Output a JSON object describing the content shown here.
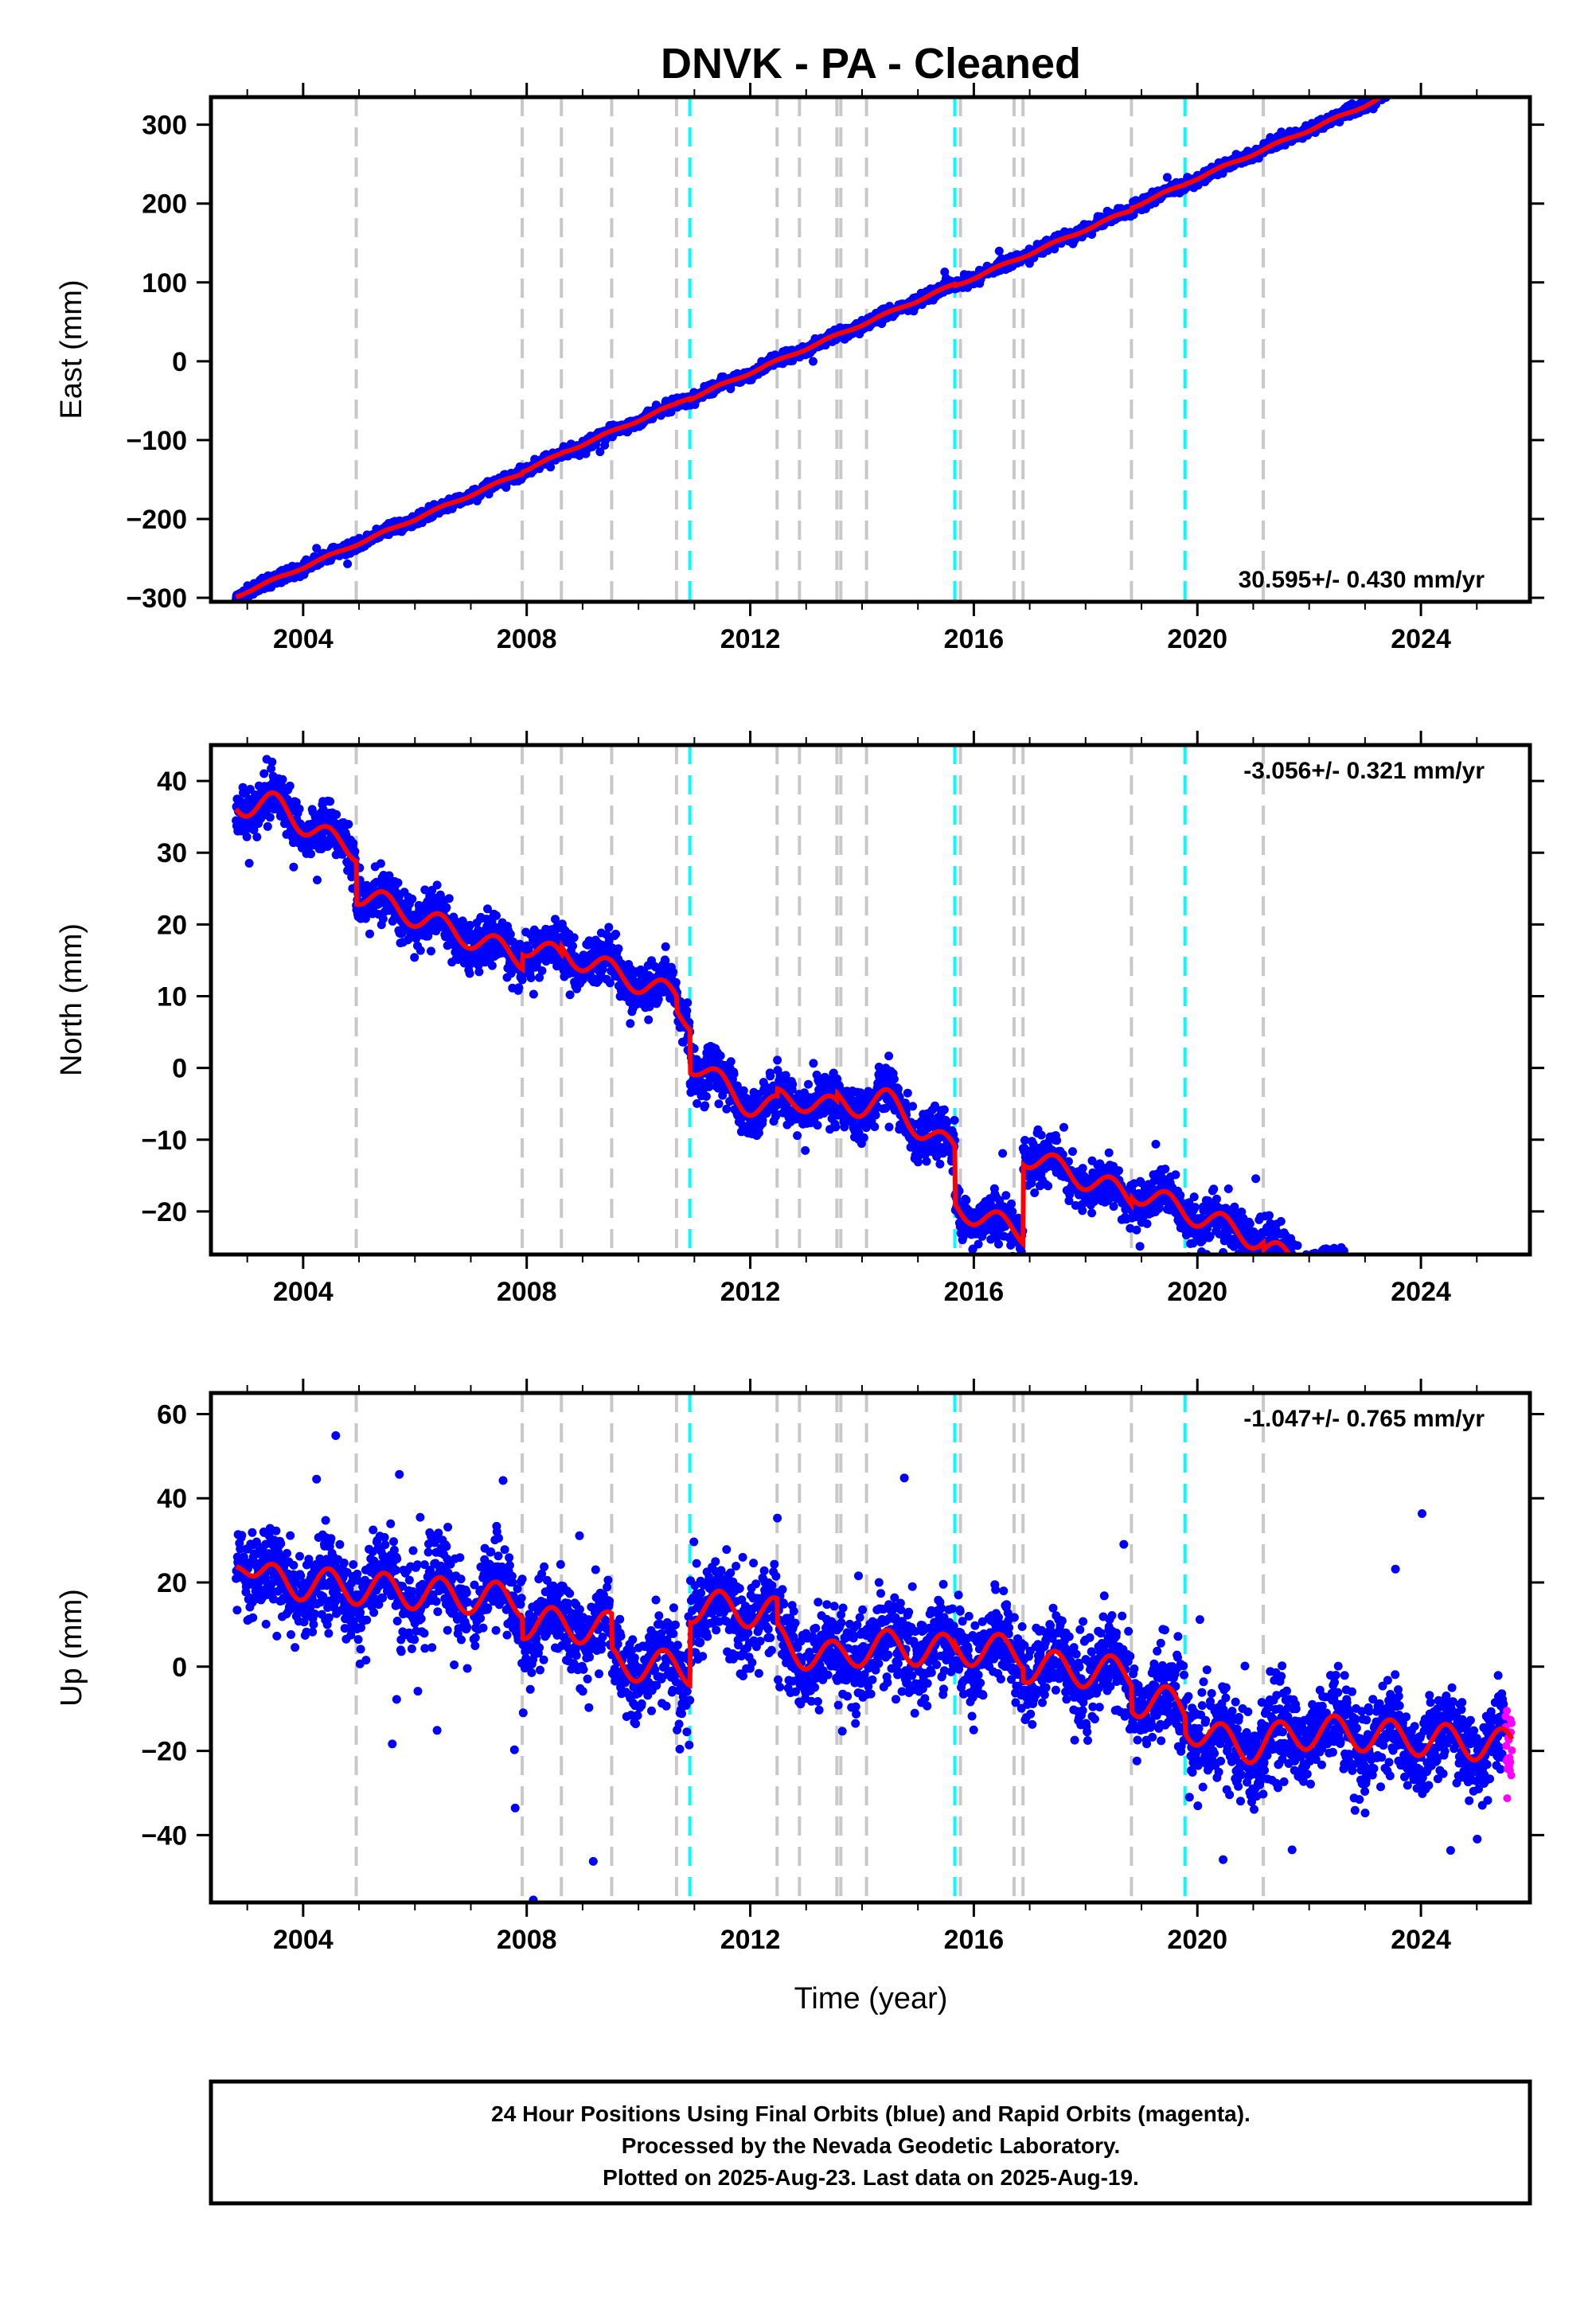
{
  "chart_data": {
    "type": "scatter",
    "title": "DNVK  - PA - Cleaned",
    "x_label": "Time (year)",
    "x_range": [
      2002.35,
      2025.95
    ],
    "x_ticks": [
      2004,
      2008,
      2012,
      2016,
      2020,
      2024
    ],
    "x_tick_labels": [
      "2004",
      "2008",
      "2012",
      "2016",
      "2020",
      "2024"
    ],
    "colors": {
      "final_orbits": "#0000ff",
      "rapid_orbits": "#ff00ff",
      "model": "#ff0000",
      "equipment_change": "#c8c8c8",
      "earthquake": "#00ffff"
    },
    "event_lines": {
      "equipment_changes": [
        2004.95,
        2007.92,
        2008.62,
        2009.52,
        2010.68,
        2012.48,
        2012.88,
        2013.55,
        2013.62,
        2014.08,
        2015.76,
        2016.72,
        2016.88,
        2018.82,
        2021.18
      ],
      "earthquakes": [
        2010.92,
        2015.66,
        2019.78
      ]
    },
    "last_data": 2025.63,
    "rapid_start": 2025.48,
    "panels": [
      {
        "component": "east",
        "y_label": "East (mm)",
        "y_range": [
          -305,
          335
        ],
        "y_ticks": [
          -300,
          -200,
          -100,
          0,
          100,
          200,
          300
        ],
        "y_tick_labels": [
          "−300",
          "−200",
          "−100",
          "0",
          "100",
          "200",
          "300"
        ],
        "rate_text": "30.595+/- 0.430 mm/yr",
        "rate_position": "bottom-right",
        "rate_mm_per_yr": 30.595,
        "rate_sigma": 0.43,
        "model_anchor": [
          2002.8,
          -298
        ],
        "seasonal_amplitude": 1.5,
        "noise_sd": 3.5,
        "outlier_fraction": 0.008,
        "outlier_scale": 10,
        "offsets": [
          {
            "year": 2007.92,
            "size": 2
          },
          {
            "year": 2008.62,
            "size": 1
          },
          {
            "year": 2010.68,
            "size": 1
          },
          {
            "year": 2010.92,
            "size": -2
          },
          {
            "year": 2015.66,
            "size": -2
          },
          {
            "year": 2018.82,
            "size": 3
          },
          {
            "year": 2019.78,
            "size": 1
          }
        ],
        "wiggles": [
          {
            "year": 2024.0,
            "size": 8,
            "width": 0.6
          },
          {
            "year": 2024.8,
            "size": -6,
            "width": 0.4
          }
        ]
      },
      {
        "component": "north",
        "y_label": "North (mm)",
        "y_range": [
          -26,
          45
        ],
        "y_ticks": [
          -20,
          -10,
          0,
          10,
          20,
          30,
          40
        ],
        "y_tick_labels": [
          "−20",
          "−10",
          "0",
          "10",
          "20",
          "30",
          "40"
        ],
        "rate_text": "-3.056+/- 0.321 mm/yr",
        "rate_position": "top-right",
        "rate_mm_per_yr": -3.056,
        "rate_sigma": 0.321,
        "model_anchor": [
          2002.8,
          37
        ],
        "seasonal_amplitude": 1.6,
        "noise_sd": 1.7,
        "outlier_fraction": 0.012,
        "outlier_scale": 7,
        "offsets": [
          {
            "year": 2004.95,
            "size": -6
          },
          {
            "year": 2007.92,
            "size": 2
          },
          {
            "year": 2008.62,
            "size": 1
          },
          {
            "year": 2010.68,
            "size": -2
          },
          {
            "year": 2010.92,
            "size": -6
          },
          {
            "year": 2012.48,
            "size": 1
          },
          {
            "year": 2013.55,
            "size": 1
          },
          {
            "year": 2015.66,
            "size": -8
          },
          {
            "year": 2016.88,
            "size": 11
          },
          {
            "year": 2018.82,
            "size": 1
          },
          {
            "year": 2021.18,
            "size": -1
          }
        ],
        "wiggles": [
          {
            "year": 2003.6,
            "size": 2,
            "width": 0.4
          },
          {
            "year": 2012.0,
            "size": -3,
            "width": 0.7
          },
          {
            "year": 2014.5,
            "size": 3,
            "width": 0.5
          }
        ]
      },
      {
        "component": "up",
        "y_label": "Up (mm)",
        "y_range": [
          -56,
          65
        ],
        "y_ticks": [
          -40,
          -20,
          0,
          20,
          40,
          60
        ],
        "y_tick_labels": [
          "−40",
          "−20",
          "0",
          "20",
          "40",
          "60"
        ],
        "rate_text": "-1.047+/- 0.765 mm/yr",
        "rate_position": "top-right",
        "rate_mm_per_yr": -1.047,
        "rate_sigma": 0.765,
        "model_anchor": [
          2002.8,
          21
        ],
        "seasonal_amplitude": 4,
        "noise_sd": 5.2,
        "outlier_fraction": 0.02,
        "outlier_scale": 22,
        "offsets": [
          {
            "year": 2007.92,
            "size": -5
          },
          {
            "year": 2009.52,
            "size": -8
          },
          {
            "year": 2010.92,
            "size": 15
          },
          {
            "year": 2012.48,
            "size": -6
          },
          {
            "year": 2015.66,
            "size": 1
          },
          {
            "year": 2016.88,
            "size": -3
          },
          {
            "year": 2018.82,
            "size": -6
          },
          {
            "year": 2019.78,
            "size": -4
          }
        ],
        "wiggles": [
          {
            "year": 2002.9,
            "size": 6,
            "width": 0.25
          },
          {
            "year": 2013.3,
            "size": -4,
            "width": 0.6
          },
          {
            "year": 2020.8,
            "size": -5,
            "width": 0.8
          }
        ],
        "rapid_drop": -14
      }
    ],
    "footer_lines": [
      "24 Hour Positions Using Final Orbits (blue) and Rapid Orbits (magenta).",
      "Processed by the Nevada Geodetic Laboratory.",
      "Plotted on 2025-Aug-23. Last data on 2025-Aug-19."
    ]
  }
}
